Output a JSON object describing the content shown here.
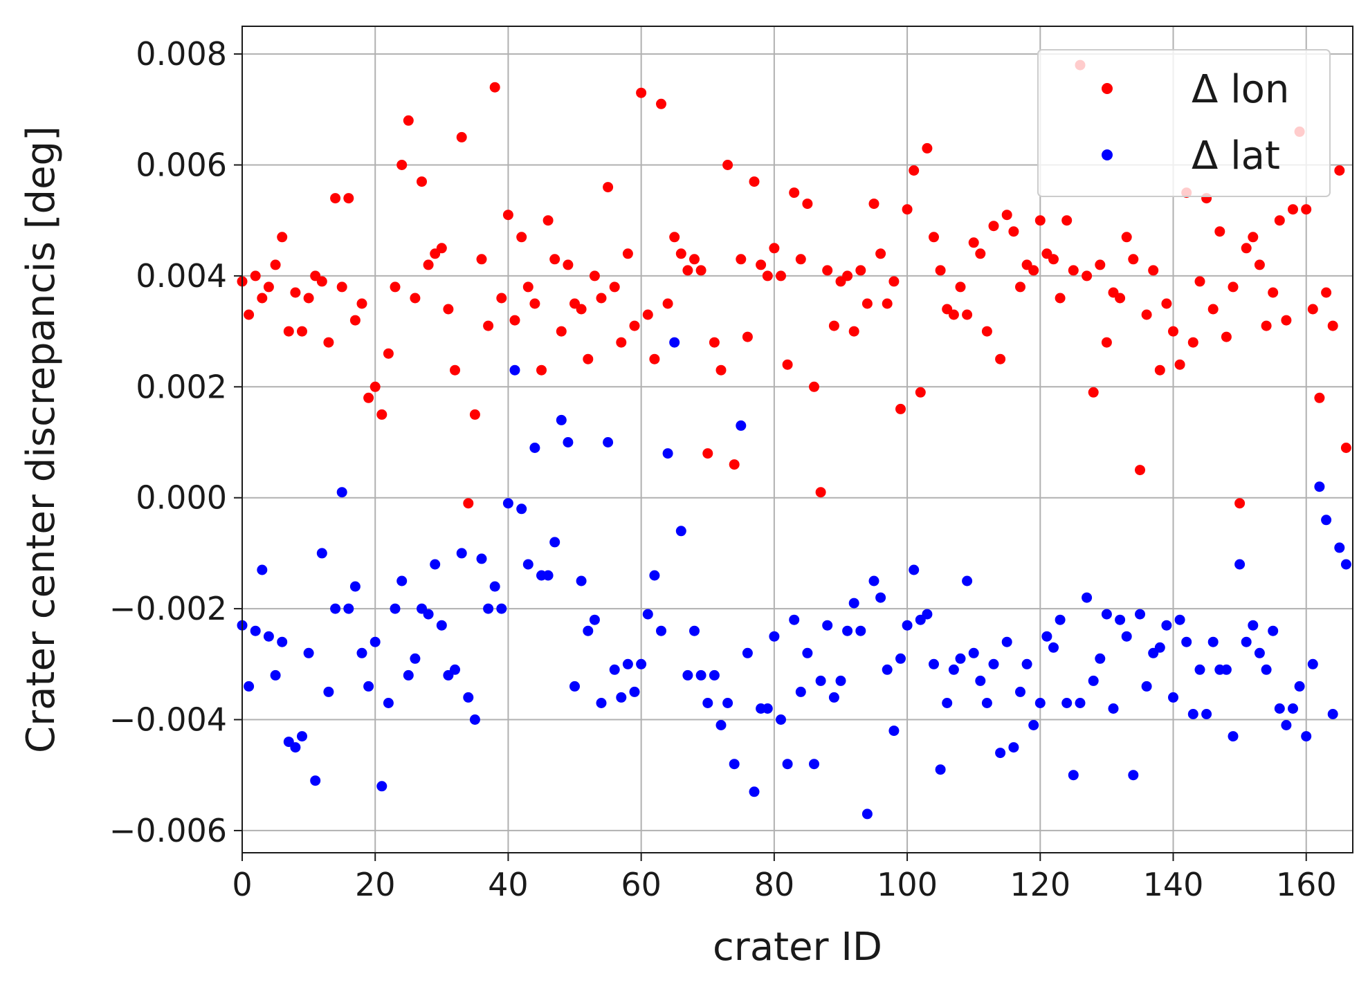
{
  "chart_data": {
    "type": "scatter",
    "title": "",
    "xlabel": "crater ID",
    "ylabel": "Crater center discrepancis [deg]",
    "xlim": [
      0,
      167
    ],
    "ylim": [
      -0.0064,
      0.0085
    ],
    "xticks": [
      0,
      20,
      40,
      60,
      80,
      100,
      120,
      140,
      160
    ],
    "yticks": [
      -0.006,
      -0.004,
      -0.002,
      0.0,
      0.002,
      0.004,
      0.006,
      0.008
    ],
    "xtick_labels": [
      "0",
      "20",
      "40",
      "60",
      "80",
      "100",
      "120",
      "140",
      "160"
    ],
    "ytick_labels": [
      "−0.006",
      "−0.004",
      "−0.002",
      "0.000",
      "0.002",
      "0.004",
      "0.006",
      "0.008"
    ],
    "grid": true,
    "legend_position": "top-right",
    "series": [
      {
        "name": "Δ lon",
        "color": "#ff0000",
        "x": [
          0,
          1,
          2,
          3,
          4,
          5,
          6,
          7,
          8,
          9,
          10,
          11,
          12,
          13,
          14,
          15,
          16,
          17,
          18,
          19,
          20,
          21,
          22,
          23,
          24,
          25,
          26,
          27,
          28,
          29,
          30,
          31,
          32,
          33,
          34,
          35,
          36,
          37,
          38,
          39,
          40,
          41,
          42,
          43,
          44,
          45,
          46,
          47,
          48,
          49,
          50,
          51,
          52,
          53,
          54,
          55,
          56,
          57,
          58,
          59,
          60,
          61,
          62,
          63,
          64,
          65,
          66,
          67,
          68,
          69,
          70,
          71,
          72,
          73,
          74,
          75,
          76,
          77,
          78,
          79,
          80,
          81,
          82,
          83,
          84,
          85,
          86,
          87,
          88,
          89,
          90,
          91,
          92,
          93,
          94,
          95,
          96,
          97,
          98,
          99,
          100,
          101,
          102,
          103,
          104,
          105,
          106,
          107,
          108,
          109,
          110,
          111,
          112,
          113,
          114,
          115,
          116,
          117,
          118,
          119,
          120,
          121,
          122,
          123,
          124,
          125,
          126,
          127,
          128,
          129,
          130,
          131,
          132,
          133,
          134,
          135,
          136,
          137,
          138,
          139,
          140,
          141,
          142,
          143,
          144,
          145,
          146,
          147,
          148,
          149,
          150,
          151,
          152,
          153,
          154,
          155,
          156,
          157,
          158,
          159,
          160,
          161,
          162,
          163,
          164,
          165,
          166
        ],
        "y": [
          0.0039,
          0.0033,
          0.004,
          0.0036,
          0.0038,
          0.0042,
          0.0047,
          0.003,
          0.0037,
          0.003,
          0.0036,
          0.004,
          0.0039,
          0.0028,
          0.0054,
          0.0038,
          0.0054,
          0.0032,
          0.0035,
          0.0018,
          0.002,
          0.0015,
          0.0026,
          0.0038,
          0.006,
          0.0068,
          0.0036,
          0.0057,
          0.0042,
          0.0044,
          0.0045,
          0.0034,
          0.0023,
          0.0065,
          -0.0001,
          0.0015,
          0.0043,
          0.0031,
          0.0074,
          0.0036,
          0.0051,
          0.0032,
          0.0047,
          0.0038,
          0.0035,
          0.0023,
          0.005,
          0.0043,
          0.003,
          0.0042,
          0.0035,
          0.0034,
          0.0025,
          0.004,
          0.0036,
          0.0056,
          0.0038,
          0.0028,
          0.0044,
          0.0031,
          0.0073,
          0.0033,
          0.0025,
          0.0071,
          0.0035,
          0.0047,
          0.0044,
          0.0041,
          0.0043,
          0.0041,
          0.0008,
          0.0028,
          0.0023,
          0.006,
          0.0006,
          0.0043,
          0.0029,
          0.0057,
          0.0042,
          0.004,
          0.0045,
          0.004,
          0.0024,
          0.0055,
          0.0043,
          0.0053,
          0.002,
          0.0001,
          0.0041,
          0.0031,
          0.0039,
          0.004,
          0.003,
          0.0041,
          0.0035,
          0.0053,
          0.0044,
          0.0035,
          0.0039,
          0.0016,
          0.0052,
          0.0059,
          0.0019,
          0.0063,
          0.0047,
          0.0041,
          0.0034,
          0.0033,
          0.0038,
          0.0033,
          0.0046,
          0.0044,
          0.003,
          0.0049,
          0.0025,
          0.0051,
          0.0048,
          0.0038,
          0.0042,
          0.0041,
          0.005,
          0.0044,
          0.0043,
          0.0036,
          0.005,
          0.0041,
          0.0078,
          0.004,
          0.0019,
          0.0042,
          0.0028,
          0.0037,
          0.0036,
          0.0047,
          0.0043,
          0.0005,
          0.0033,
          0.0041,
          0.0023,
          0.0035,
          0.003,
          0.0024,
          0.0055,
          0.0028,
          0.0039,
          0.0054,
          0.0034,
          0.0048,
          0.0029,
          0.0038,
          -0.0001,
          0.0045,
          0.0047,
          0.0042,
          0.0031,
          0.0037,
          0.005,
          0.0032,
          0.0052,
          0.0066,
          0.0052,
          0.0034,
          0.0018,
          0.0037,
          0.0031,
          0.0059,
          0.0009
        ]
      },
      {
        "name": "Δ lat",
        "color": "#0000ff",
        "x": [
          0,
          1,
          2,
          3,
          4,
          5,
          6,
          7,
          8,
          9,
          10,
          11,
          12,
          13,
          14,
          15,
          16,
          17,
          18,
          19,
          20,
          21,
          22,
          23,
          24,
          25,
          26,
          27,
          28,
          29,
          30,
          31,
          32,
          33,
          34,
          35,
          36,
          37,
          38,
          39,
          40,
          41,
          42,
          43,
          44,
          45,
          46,
          47,
          48,
          49,
          50,
          51,
          52,
          53,
          54,
          55,
          56,
          57,
          58,
          59,
          60,
          61,
          62,
          63,
          64,
          65,
          66,
          67,
          68,
          69,
          70,
          71,
          72,
          73,
          74,
          75,
          76,
          77,
          78,
          79,
          80,
          81,
          82,
          83,
          84,
          85,
          86,
          87,
          88,
          89,
          90,
          91,
          92,
          93,
          94,
          95,
          96,
          97,
          98,
          99,
          100,
          101,
          102,
          103,
          104,
          105,
          106,
          107,
          108,
          109,
          110,
          111,
          112,
          113,
          114,
          115,
          116,
          117,
          118,
          119,
          120,
          121,
          122,
          123,
          124,
          125,
          126,
          127,
          128,
          129,
          130,
          131,
          132,
          133,
          134,
          135,
          136,
          137,
          138,
          139,
          140,
          141,
          142,
          143,
          144,
          145,
          146,
          147,
          148,
          149,
          150,
          151,
          152,
          153,
          154,
          155,
          156,
          157,
          158,
          159,
          160,
          161,
          162,
          163,
          164,
          165,
          166
        ],
        "y": [
          -0.0023,
          -0.0034,
          -0.0024,
          -0.0013,
          -0.0025,
          -0.0032,
          -0.0026,
          -0.0044,
          -0.0045,
          -0.0043,
          -0.0028,
          -0.0051,
          -0.001,
          -0.0035,
          -0.002,
          0.0001,
          -0.002,
          -0.0016,
          -0.0028,
          -0.0034,
          -0.0026,
          -0.0052,
          -0.0037,
          -0.002,
          -0.0015,
          -0.0032,
          -0.0029,
          -0.002,
          -0.0021,
          -0.0012,
          -0.0023,
          -0.0032,
          -0.0031,
          -0.001,
          -0.0036,
          -0.004,
          -0.0011,
          -0.002,
          -0.0016,
          -0.002,
          -0.0001,
          0.0023,
          -0.0002,
          -0.0012,
          0.0009,
          -0.0014,
          -0.0014,
          -0.0008,
          0.0014,
          0.001,
          -0.0034,
          -0.0015,
          -0.0024,
          -0.0022,
          -0.0037,
          0.001,
          -0.0031,
          -0.0036,
          -0.003,
          -0.0035,
          -0.003,
          -0.0021,
          -0.0014,
          -0.0024,
          0.0008,
          0.0028,
          -0.0006,
          -0.0032,
          -0.0024,
          -0.0032,
          -0.0037,
          -0.0032,
          -0.0041,
          -0.0037,
          -0.0048,
          0.0013,
          -0.0028,
          -0.0053,
          -0.0038,
          -0.0038,
          -0.0025,
          -0.004,
          -0.0048,
          -0.0022,
          -0.0035,
          -0.0028,
          -0.0048,
          -0.0033,
          -0.0023,
          -0.0036,
          -0.0033,
          -0.0024,
          -0.0019,
          -0.0024,
          -0.0057,
          -0.0015,
          -0.0018,
          -0.0031,
          -0.0042,
          -0.0029,
          -0.0023,
          -0.0013,
          -0.0022,
          -0.0021,
          -0.003,
          -0.0049,
          -0.0037,
          -0.0031,
          -0.0029,
          -0.0015,
          -0.0028,
          -0.0033,
          -0.0037,
          -0.003,
          -0.0046,
          -0.0026,
          -0.0045,
          -0.0035,
          -0.003,
          -0.0041,
          -0.0037,
          -0.0025,
          -0.0027,
          -0.0022,
          -0.0037,
          -0.005,
          -0.0037,
          -0.0018,
          -0.0033,
          -0.0029,
          -0.0021,
          -0.0038,
          -0.0022,
          -0.0025,
          -0.005,
          -0.0021,
          -0.0034,
          -0.0028,
          -0.0027,
          -0.0023,
          -0.0036,
          -0.0022,
          -0.0026,
          -0.0039,
          -0.0031,
          -0.0039,
          -0.0026,
          -0.0031,
          -0.0031,
          -0.0043,
          -0.0012,
          -0.0026,
          -0.0023,
          -0.0028,
          -0.0031,
          -0.0024,
          -0.0038,
          -0.0041,
          -0.0038,
          -0.0034,
          -0.0043,
          -0.003,
          0.0002,
          -0.0004,
          -0.0039,
          -0.0009,
          -0.0012
        ]
      }
    ]
  }
}
